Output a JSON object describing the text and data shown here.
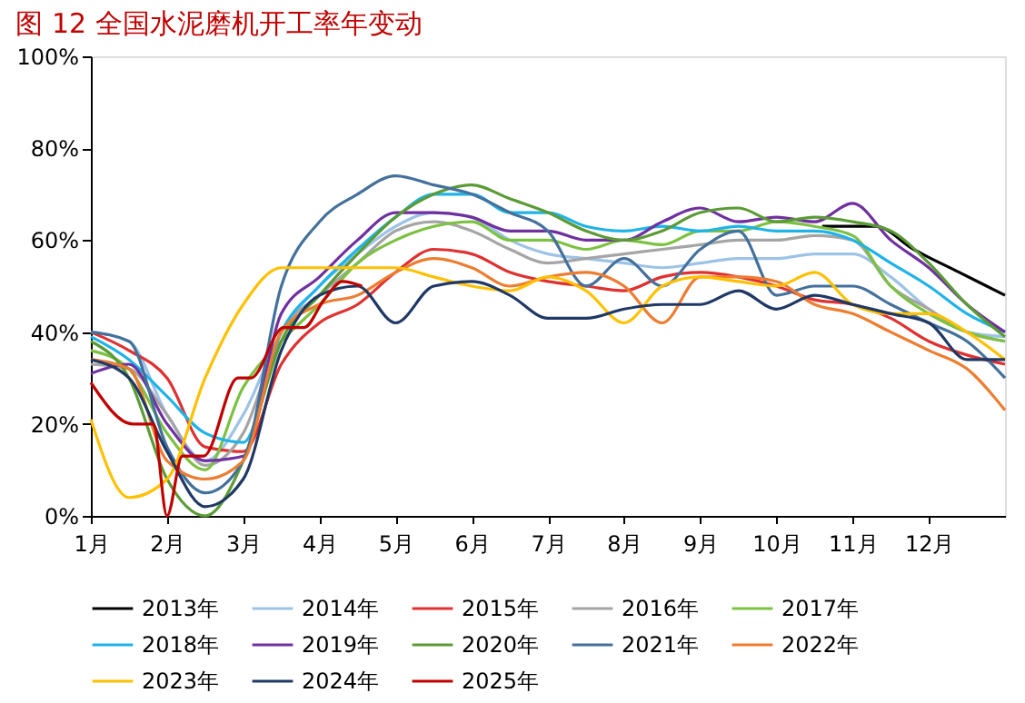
{
  "chart_data": {
    "type": "line",
    "title": "图 12 全国水泥磨机开工率年变动",
    "x": [
      1,
      1.5,
      2,
      2.5,
      3,
      3.5,
      4,
      4.5,
      5,
      5.5,
      6,
      6.5,
      7,
      7.5,
      8,
      8.5,
      9,
      9.5,
      10,
      10.5,
      11,
      11.5,
      12,
      12.5,
      13
    ],
    "xlim": [
      1,
      13
    ],
    "xticks": [
      {
        "value": 1,
        "label": "1月"
      },
      {
        "value": 2,
        "label": "2月"
      },
      {
        "value": 3,
        "label": "3月"
      },
      {
        "value": 4,
        "label": "4月"
      },
      {
        "value": 5,
        "label": "5月"
      },
      {
        "value": 6,
        "label": "6月"
      },
      {
        "value": 7,
        "label": "7月"
      },
      {
        "value": 8,
        "label": "8月"
      },
      {
        "value": 9,
        "label": "9月"
      },
      {
        "value": 10,
        "label": "10月"
      },
      {
        "value": 11,
        "label": "11月"
      },
      {
        "value": 12,
        "label": "12月"
      }
    ],
    "ylim": [
      0,
      100
    ],
    "yticks": [
      {
        "value": 0,
        "label": "0%"
      },
      {
        "value": 20,
        "label": "20%"
      },
      {
        "value": 40,
        "label": "40%"
      },
      {
        "value": 60,
        "label": "60%"
      },
      {
        "value": 80,
        "label": "80%"
      },
      {
        "value": 100,
        "label": "100%"
      }
    ],
    "grid": false,
    "legend": "bottom",
    "marker": "none",
    "line_style": "solid",
    "series": [
      {
        "name": "2013年",
        "color": "#000000",
        "x": [
          10.6,
          11.3,
          11.8,
          12.4,
          13
        ],
        "values": [
          63,
          63,
          58,
          53,
          48
        ]
      },
      {
        "name": "2014年",
        "color": "#9dc3e6",
        "values": [
          40,
          38,
          22,
          12,
          22,
          40,
          50,
          57,
          63,
          66,
          65,
          60,
          57,
          56,
          55,
          54,
          55,
          56,
          56,
          57,
          57,
          52,
          45,
          40,
          39
        ]
      },
      {
        "name": "2015年",
        "color": "#e03030",
        "values": [
          40,
          36,
          30,
          15,
          14,
          33,
          42,
          46,
          53,
          58,
          57,
          53,
          51,
          50,
          49,
          52,
          53,
          52,
          50,
          47,
          46,
          43,
          38,
          35,
          33
        ]
      },
      {
        "name": "2016年",
        "color": "#a5a5a5",
        "values": [
          33,
          32,
          22,
          11,
          18,
          40,
          48,
          55,
          62,
          64,
          62,
          58,
          55,
          56,
          57,
          58,
          59,
          60,
          60,
          61,
          60,
          50,
          45,
          40,
          38
        ]
      },
      {
        "name": "2017年",
        "color": "#7cc142",
        "values": [
          36,
          32,
          18,
          10,
          28,
          38,
          46,
          55,
          60,
          63,
          64,
          60,
          60,
          58,
          60,
          59,
          62,
          62,
          64,
          63,
          61,
          50,
          44,
          40,
          38
        ]
      },
      {
        "name": "2018年",
        "color": "#1fb3e8",
        "values": [
          39,
          34,
          26,
          18,
          16,
          40,
          50,
          58,
          65,
          70,
          70,
          66,
          66,
          63,
          62,
          63,
          62,
          63,
          62,
          62,
          60,
          55,
          50,
          44,
          40
        ]
      },
      {
        "name": "2019年",
        "color": "#7030a0",
        "values": [
          31,
          33,
          20,
          12,
          13,
          44,
          52,
          60,
          66,
          66,
          65,
          62,
          62,
          60,
          60,
          64,
          67,
          64,
          65,
          64,
          68,
          60,
          54,
          46,
          40
        ]
      },
      {
        "name": "2020年",
        "color": "#5b9b35",
        "values": [
          38,
          30,
          8,
          0,
          12,
          38,
          48,
          57,
          65,
          70,
          72,
          69,
          66,
          62,
          60,
          62,
          66,
          67,
          64,
          65,
          64,
          62,
          55,
          46,
          39
        ]
      },
      {
        "name": "2021年",
        "color": "#44719c",
        "values": [
          40,
          38,
          15,
          5,
          12,
          50,
          64,
          70,
          74,
          72,
          70,
          66,
          62,
          50,
          56,
          50,
          58,
          62,
          48,
          50,
          50,
          46,
          42,
          38,
          30
        ]
      },
      {
        "name": "2022年",
        "color": "#ed7d31",
        "values": [
          34,
          32,
          12,
          8,
          12,
          40,
          46,
          48,
          53,
          56,
          54,
          50,
          52,
          53,
          50,
          42,
          52,
          52,
          51,
          46,
          44,
          40,
          36,
          32,
          23
        ]
      },
      {
        "name": "2023年",
        "color": "#ffc000",
        "values": [
          21,
          4,
          8,
          30,
          46,
          54,
          54,
          54,
          54,
          52,
          50,
          49,
          52,
          49,
          42,
          50,
          52,
          51,
          50,
          53,
          46,
          44,
          44,
          40,
          34
        ]
      },
      {
        "name": "2024年",
        "color": "#1f3864",
        "values": [
          34,
          30,
          14,
          2,
          8,
          36,
          48,
          50,
          42,
          50,
          51,
          48,
          43,
          43,
          45,
          46,
          46,
          49,
          45,
          48,
          46,
          44,
          42,
          34,
          34
        ]
      },
      {
        "name": "2025年",
        "color": "#c00000",
        "x": [
          1,
          1.55,
          1.82,
          2,
          2.2,
          2.48,
          2.93,
          3.1,
          3.53,
          3.8,
          4.06,
          4.3,
          4.56
        ],
        "values": [
          29,
          20,
          20,
          0,
          13,
          13,
          30,
          30,
          41,
          41,
          47,
          51,
          50
        ]
      }
    ]
  }
}
